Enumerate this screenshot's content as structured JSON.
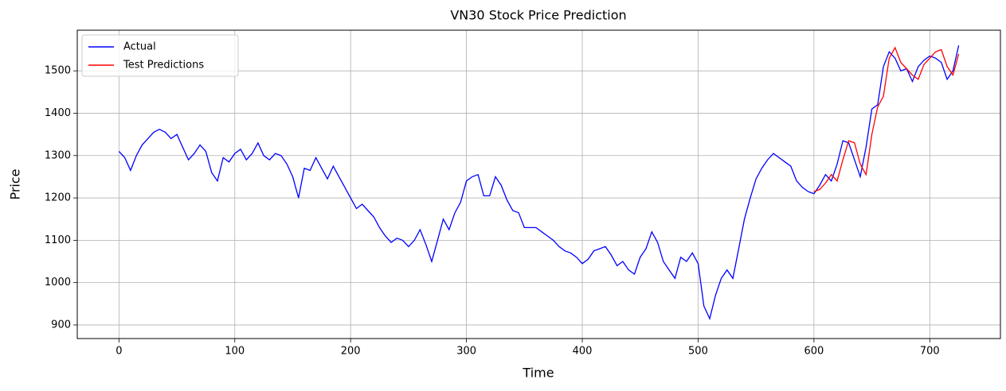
{
  "chart_data": {
    "type": "line",
    "title": "VN30 Stock Price Prediction",
    "x_label": "Time",
    "y_label": "Price",
    "xlim": [
      -36,
      761
    ],
    "ylim": [
      868,
      1596
    ],
    "xticks": [
      0,
      100,
      200,
      300,
      400,
      500,
      600,
      700
    ],
    "yticks": [
      900,
      1000,
      1100,
      1200,
      1300,
      1400,
      1500
    ],
    "grid": true,
    "legend": "upper-left",
    "series": [
      {
        "name": "Actual",
        "color": "#0000ff",
        "x": [
          0,
          5,
          10,
          15,
          20,
          25,
          30,
          35,
          40,
          45,
          50,
          55,
          60,
          65,
          70,
          75,
          80,
          85,
          90,
          95,
          100,
          105,
          110,
          115,
          120,
          125,
          130,
          135,
          140,
          145,
          150,
          155,
          160,
          165,
          170,
          175,
          180,
          185,
          190,
          195,
          200,
          205,
          210,
          215,
          220,
          225,
          230,
          235,
          240,
          245,
          250,
          255,
          260,
          265,
          270,
          275,
          280,
          285,
          290,
          295,
          300,
          305,
          310,
          315,
          320,
          325,
          330,
          335,
          340,
          345,
          350,
          355,
          360,
          365,
          370,
          375,
          380,
          385,
          390,
          395,
          400,
          405,
          410,
          415,
          420,
          425,
          430,
          435,
          440,
          445,
          450,
          455,
          460,
          465,
          470,
          475,
          480,
          485,
          490,
          495,
          500,
          505,
          510,
          515,
          520,
          525,
          530,
          535,
          540,
          545,
          550,
          555,
          560,
          565,
          570,
          575,
          580,
          585,
          590,
          595,
          600,
          605,
          610,
          615,
          620,
          625,
          630,
          635,
          640,
          645,
          650,
          655,
          660,
          665,
          670,
          675,
          680,
          685,
          690,
          695,
          700,
          705,
          710,
          715,
          720,
          725
        ],
        "values": [
          1310,
          1295,
          1265,
          1300,
          1325,
          1340,
          1355,
          1362,
          1355,
          1340,
          1350,
          1320,
          1290,
          1305,
          1325,
          1310,
          1260,
          1240,
          1295,
          1285,
          1305,
          1315,
          1290,
          1305,
          1330,
          1300,
          1290,
          1305,
          1300,
          1280,
          1250,
          1200,
          1270,
          1265,
          1295,
          1270,
          1245,
          1275,
          1250,
          1225,
          1200,
          1175,
          1185,
          1170,
          1155,
          1130,
          1110,
          1095,
          1105,
          1100,
          1085,
          1100,
          1125,
          1090,
          1050,
          1100,
          1150,
          1125,
          1165,
          1190,
          1240,
          1250,
          1255,
          1205,
          1205,
          1250,
          1230,
          1195,
          1170,
          1165,
          1130,
          1130,
          1130,
          1120,
          1110,
          1100,
          1085,
          1075,
          1070,
          1060,
          1045,
          1055,
          1075,
          1080,
          1085,
          1065,
          1040,
          1050,
          1030,
          1020,
          1060,
          1080,
          1120,
          1095,
          1050,
          1030,
          1010,
          1060,
          1050,
          1070,
          1045,
          945,
          915,
          970,
          1010,
          1030,
          1010,
          1080,
          1150,
          1200,
          1245,
          1270,
          1290,
          1305,
          1295,
          1285,
          1275,
          1240,
          1225,
          1215,
          1210,
          1230,
          1255,
          1240,
          1280,
          1335,
          1330,
          1290,
          1250,
          1320,
          1410,
          1420,
          1510,
          1545,
          1530,
          1500,
          1505,
          1475,
          1510,
          1525,
          1535,
          1530,
          1520,
          1480,
          1500,
          1560
        ]
      },
      {
        "name": "Test Predictions",
        "color": "#ff0000",
        "x": [
          600,
          605,
          610,
          615,
          620,
          625,
          630,
          635,
          640,
          645,
          650,
          655,
          660,
          665,
          670,
          675,
          680,
          685,
          690,
          695,
          700,
          705,
          710,
          715,
          720,
          725
        ],
        "values": [
          1215,
          1220,
          1235,
          1255,
          1240,
          1290,
          1335,
          1330,
          1280,
          1255,
          1350,
          1415,
          1440,
          1530,
          1555,
          1520,
          1505,
          1490,
          1480,
          1515,
          1530,
          1545,
          1550,
          1510,
          1490,
          1540
        ]
      }
    ]
  }
}
